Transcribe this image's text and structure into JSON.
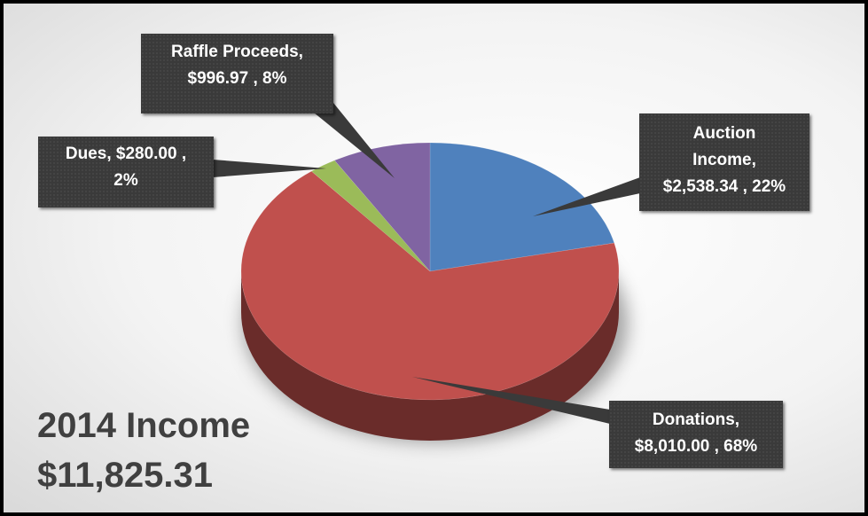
{
  "chart_data": {
    "type": "pie",
    "title": "2014 Income",
    "total": "$11,825.31",
    "slices": [
      {
        "name": "Auction Income",
        "value": 2538.34,
        "label": "$2,538.34",
        "percent": "22%",
        "color": "#4f81bd"
      },
      {
        "name": "Donations",
        "value": 8010.0,
        "label": "$8,010.00",
        "percent": "68%",
        "color": "#c0504d"
      },
      {
        "name": "Dues",
        "value": 280.0,
        "label": "$280.00",
        "percent": "2%",
        "color": "#9bbb59"
      },
      {
        "name": "Raffle Proceeds",
        "value": 996.97,
        "label": "$996.97",
        "percent": "8%",
        "color": "#8064a2"
      }
    ],
    "legend": "none",
    "style": "3d-pie"
  },
  "callouts": {
    "raffle": {
      "line1": "Raffle Proceeds,",
      "line2": "$996.97 , 8%"
    },
    "dues": {
      "line1": "Dues,  $280.00 ,",
      "line2": "2%"
    },
    "auction": {
      "line1": "Auction",
      "line2": "Income,",
      "line3": "$2,538.34 , 22%"
    },
    "donations": {
      "line1": "Donations,",
      "line2": "$8,010.00 , 68%"
    }
  }
}
